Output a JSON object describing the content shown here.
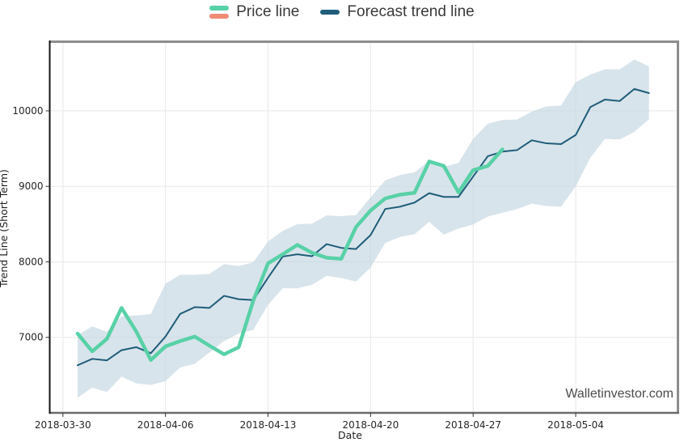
{
  "legend": {
    "items": [
      {
        "label": "Price line",
        "swatch": "dual",
        "colors": [
          "#58d1a7",
          "#f18b74"
        ]
      },
      {
        "label": "Forecast trend line",
        "swatch": "single",
        "colors": [
          "#1f5d7a"
        ]
      }
    ]
  },
  "watermark": "Walletinvestor.com",
  "colors": {
    "price_line": "#58d1a7",
    "price_line_secondary": "#f18b74",
    "forecast_line": "#1f5d7a",
    "confidence_band": "#c3d5e1",
    "gridline": "#ebebeb",
    "left_spine": "#141414",
    "bottom_spine": "#6b6b6b",
    "top_right_border": "#8d8d8d"
  },
  "chart_data": {
    "type": "line",
    "title": "",
    "xlabel": "Date",
    "ylabel": "Trend Line (Short Term)",
    "legend_position": "top-center",
    "grid": true,
    "x_tick_labels": [
      "2018-03-30",
      "2018-04-06",
      "2018-04-13",
      "2018-04-20",
      "2018-04-27",
      "2018-05-04"
    ],
    "x_tick_days": [
      0,
      7,
      14,
      21,
      28,
      35
    ],
    "y_ticks": [
      7000,
      8000,
      9000,
      10000
    ],
    "x_domain_days": [
      -0.9,
      41.95
    ],
    "y_domain": [
      6000,
      10900
    ],
    "start_date": "2018-03-30",
    "dates": [
      "2018-03-31",
      "2018-04-01",
      "2018-04-02",
      "2018-04-03",
      "2018-04-04",
      "2018-04-05",
      "2018-04-06",
      "2018-04-07",
      "2018-04-08",
      "2018-04-09",
      "2018-04-10",
      "2018-04-11",
      "2018-04-12",
      "2018-04-13",
      "2018-04-14",
      "2018-04-15",
      "2018-04-16",
      "2018-04-17",
      "2018-04-18",
      "2018-04-19",
      "2018-04-20",
      "2018-04-21",
      "2018-04-22",
      "2018-04-23",
      "2018-04-24",
      "2018-04-25",
      "2018-04-26",
      "2018-04-27",
      "2018-04-28",
      "2018-04-29",
      "2018-04-30",
      "2018-05-01",
      "2018-05-02",
      "2018-05-03",
      "2018-05-04",
      "2018-05-05",
      "2018-05-06",
      "2018-05-07",
      "2018-05-08",
      "2018-05-09"
    ],
    "series": [
      {
        "name": "Price line",
        "color": "#58d1a7",
        "width": 4.5,
        "start_day": 1,
        "values": [
          7050,
          6815,
          6980,
          7390,
          7080,
          6700,
          6880,
          6950,
          7010,
          6890,
          6775,
          6870,
          7490,
          7980,
          8100,
          8225,
          8120,
          8055,
          8040,
          8460,
          8680,
          8840,
          8890,
          8915,
          9330,
          9270,
          8920,
          9215,
          9270,
          9490
        ]
      },
      {
        "name": "Forecast trend line",
        "color": "#1f5d7a",
        "width": 2,
        "start_day": 1,
        "values": [
          6630,
          6715,
          6695,
          6830,
          6870,
          6790,
          7010,
          7310,
          7400,
          7390,
          7550,
          7505,
          7495,
          7790,
          8070,
          8100,
          8075,
          8235,
          8185,
          8170,
          8355,
          8700,
          8730,
          8785,
          8910,
          8860,
          8860,
          9130,
          9400,
          9460,
          9480,
          9610,
          9570,
          9560,
          9680,
          10050,
          10150,
          10130,
          10290,
          10235
        ]
      }
    ],
    "band": {
      "name": "forecast confidence band",
      "fill": "#c3d5e1",
      "opacity": 0.65,
      "start_day": 1,
      "upper": [
        7030,
        7145,
        7075,
        7280,
        7290,
        7310,
        7710,
        7830,
        7830,
        7840,
        7970,
        7945,
        7995,
        8270,
        8410,
        8500,
        8505,
        8615,
        8605,
        8620,
        8855,
        9080,
        9150,
        9185,
        9340,
        9260,
        9310,
        9630,
        9830,
        9880,
        9885,
        9990,
        10060,
        10070,
        10380,
        10480,
        10550,
        10550,
        10680,
        10590
      ],
      "lower": [
        6200,
        6335,
        6275,
        6480,
        6390,
        6370,
        6420,
        6600,
        6650,
        6800,
        6950,
        7050,
        7100,
        7430,
        7650,
        7650,
        7695,
        7815,
        7785,
        7740,
        7925,
        8250,
        8330,
        8365,
        8530,
        8360,
        8440,
        8495,
        8600,
        8650,
        8700,
        8770,
        8740,
        8730,
        9000,
        9380,
        9630,
        9620,
        9720,
        9890
      ]
    }
  }
}
